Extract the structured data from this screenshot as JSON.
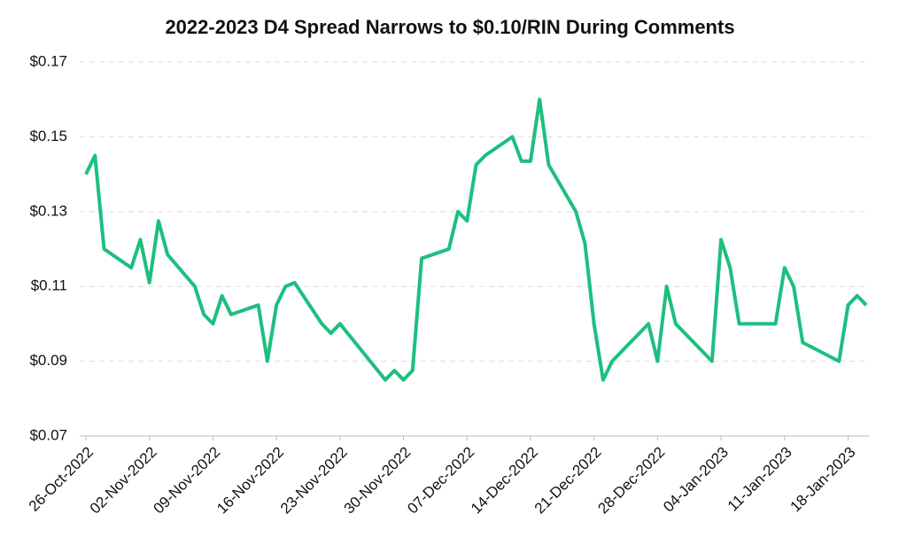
{
  "chart_data": {
    "type": "line",
    "title": "2022-2023 D4 Spread Narrows to $0.10/RIN During Comments",
    "x": [
      "2022-10-26",
      "2022-10-27",
      "2022-10-28",
      "2022-10-31",
      "2022-11-01",
      "2022-11-02",
      "2022-11-03",
      "2022-11-04",
      "2022-11-07",
      "2022-11-08",
      "2022-11-09",
      "2022-11-10",
      "2022-11-11",
      "2022-11-14",
      "2022-11-15",
      "2022-11-16",
      "2022-11-17",
      "2022-11-18",
      "2022-11-21",
      "2022-11-22",
      "2022-11-23",
      "2022-11-28",
      "2022-11-29",
      "2022-11-30",
      "2022-12-01",
      "2022-12-02",
      "2022-12-05",
      "2022-12-06",
      "2022-12-07",
      "2022-12-08",
      "2022-12-09",
      "2022-12-12",
      "2022-12-13",
      "2022-12-14",
      "2022-12-15",
      "2022-12-16",
      "2022-12-19",
      "2022-12-20",
      "2022-12-21",
      "2022-12-22",
      "2022-12-23",
      "2022-12-27",
      "2022-12-28",
      "2022-12-29",
      "2022-12-30",
      "2023-01-03",
      "2023-01-04",
      "2023-01-05",
      "2023-01-06",
      "2023-01-10",
      "2023-01-11",
      "2023-01-12",
      "2023-01-13",
      "2023-01-17",
      "2023-01-18",
      "2023-01-19",
      "2023-01-20"
    ],
    "series": [
      {
        "name": "D4 Spread",
        "color": "#1dbf7f",
        "values": [
          0.14,
          0.145,
          0.12,
          0.115,
          0.1225,
          0.111,
          0.1275,
          0.1185,
          0.11,
          0.1025,
          0.1,
          0.1075,
          0.1025,
          0.105,
          0.09,
          0.105,
          0.11,
          0.111,
          0.1,
          0.0975,
          0.1,
          0.085,
          0.0875,
          0.085,
          0.0875,
          0.1175,
          0.12,
          0.13,
          0.1275,
          0.1425,
          0.145,
          0.15,
          0.1435,
          0.1435,
          0.16,
          0.1425,
          0.13,
          0.1215,
          0.1,
          0.085,
          0.09,
          0.1,
          0.09,
          0.11,
          0.1,
          0.09,
          0.1225,
          0.115,
          0.1,
          0.1,
          0.115,
          0.11,
          0.095,
          0.09,
          0.105,
          0.1075,
          0.105
        ]
      }
    ],
    "xlim": [
      "2022-10-26",
      "2023-01-20"
    ],
    "xticks": [
      {
        "value": "2022-10-26",
        "label": "26-Oct-2022"
      },
      {
        "value": "2022-11-02",
        "label": "02-Nov-2022"
      },
      {
        "value": "2022-11-09",
        "label": "09-Nov-2022"
      },
      {
        "value": "2022-11-16",
        "label": "16-Nov-2022"
      },
      {
        "value": "2022-11-23",
        "label": "23-Nov-2022"
      },
      {
        "value": "2022-11-30",
        "label": "30-Nov-2022"
      },
      {
        "value": "2022-12-07",
        "label": "07-Dec-2022"
      },
      {
        "value": "2022-12-14",
        "label": "14-Dec-2022"
      },
      {
        "value": "2022-12-21",
        "label": "21-Dec-2022"
      },
      {
        "value": "2022-12-28",
        "label": "28-Dec-2022"
      },
      {
        "value": "2023-01-04",
        "label": "04-Jan-2023"
      },
      {
        "value": "2023-01-11",
        "label": "11-Jan-2023"
      },
      {
        "value": "2023-01-18",
        "label": "18-Jan-2023"
      }
    ],
    "ylim": [
      0.07,
      0.17
    ],
    "yticks": [
      {
        "value": 0.07,
        "label": "$0.07"
      },
      {
        "value": 0.09,
        "label": "$0.09"
      },
      {
        "value": 0.11,
        "label": "$0.11"
      },
      {
        "value": 0.13,
        "label": "$0.13"
      },
      {
        "value": 0.15,
        "label": "$0.15"
      },
      {
        "value": 0.17,
        "label": "$0.17"
      }
    ],
    "grid": true
  }
}
